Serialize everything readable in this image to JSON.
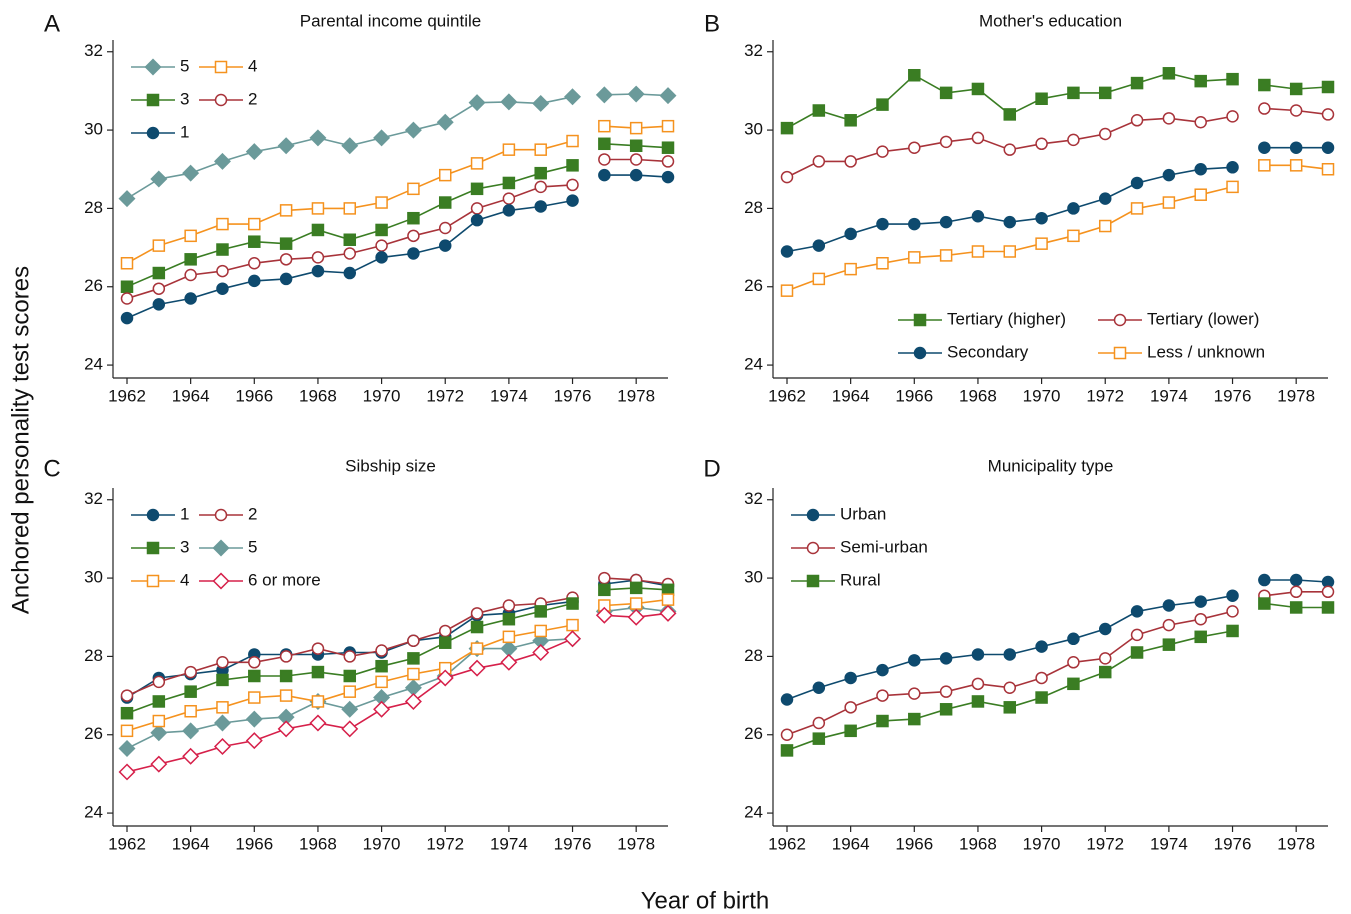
{
  "ylabel": "Anchored personality test scores",
  "xlabel": "Year of birth",
  "chart_data": [
    {
      "type": "line",
      "panel": "A",
      "title": "Parental income quintile",
      "x": [
        1962,
        1963,
        1964,
        1965,
        1966,
        1967,
        1968,
        1969,
        1970,
        1971,
        1972,
        1973,
        1974,
        1975,
        1976,
        null,
        1977,
        1978,
        1979
      ],
      "xlim": [
        1961.56,
        1979.0
      ],
      "xticks": [
        1962,
        1964,
        1966,
        1968,
        1970,
        1972,
        1974,
        1976,
        1978
      ],
      "ylim": [
        23.67,
        32.3
      ],
      "yticks": [
        24,
        26,
        28,
        30,
        32
      ],
      "legend": "upper left",
      "legend_columns": 2,
      "series": [
        {
          "name": "5",
          "color": "#6b9a9a",
          "marker": "diamond",
          "open": false,
          "values": [
            28.25,
            28.75,
            28.9,
            29.2,
            29.45,
            29.6,
            29.8,
            29.6,
            29.8,
            30.0,
            30.2,
            30.7,
            30.72,
            30.68,
            30.85,
            null,
            30.9,
            30.92,
            30.88
          ]
        },
        {
          "name": "4",
          "color": "#f5921e",
          "marker": "square",
          "open": true,
          "values": [
            26.6,
            27.05,
            27.3,
            27.6,
            27.6,
            27.95,
            28.0,
            28.0,
            28.15,
            28.5,
            28.85,
            29.15,
            29.5,
            29.5,
            29.72,
            null,
            30.1,
            30.05,
            30.1
          ]
        },
        {
          "name": "3",
          "color": "#3a7d23",
          "marker": "square",
          "open": false,
          "values": [
            26.0,
            26.35,
            26.7,
            26.95,
            27.15,
            27.1,
            27.45,
            27.2,
            27.45,
            27.75,
            28.15,
            28.5,
            28.65,
            28.9,
            29.1,
            null,
            29.65,
            29.6,
            29.55
          ]
        },
        {
          "name": "2",
          "color": "#a8333a",
          "marker": "circle",
          "open": true,
          "values": [
            25.7,
            25.95,
            26.3,
            26.4,
            26.6,
            26.7,
            26.75,
            26.85,
            27.05,
            27.3,
            27.5,
            28.0,
            28.25,
            28.55,
            28.6,
            null,
            29.25,
            29.25,
            29.2
          ]
        },
        {
          "name": "1",
          "color": "#0e4a6e",
          "marker": "circle",
          "open": false,
          "values": [
            25.2,
            25.55,
            25.7,
            25.95,
            26.15,
            26.2,
            26.4,
            26.35,
            26.75,
            26.85,
            27.05,
            27.7,
            27.95,
            28.05,
            28.2,
            null,
            28.85,
            28.85,
            28.8
          ]
        }
      ]
    },
    {
      "type": "line",
      "panel": "B",
      "title": "Mother's education",
      "x": [
        1962,
        1963,
        1964,
        1965,
        1966,
        1967,
        1968,
        1969,
        1970,
        1971,
        1972,
        1973,
        1974,
        1975,
        1976,
        null,
        1977,
        1978,
        1979
      ],
      "xlim": [
        1961.56,
        1979.0
      ],
      "xticks": [
        1962,
        1964,
        1966,
        1968,
        1970,
        1972,
        1974,
        1976,
        1978
      ],
      "ylim": [
        23.67,
        32.3
      ],
      "yticks": [
        24,
        26,
        28,
        30,
        32
      ],
      "legend": "lower right",
      "legend_columns": 2,
      "series": [
        {
          "name": "Tertiary (higher)",
          "color": "#3a7d23",
          "marker": "square",
          "open": false,
          "values": [
            30.05,
            30.5,
            30.25,
            30.65,
            31.4,
            30.95,
            31.05,
            30.4,
            30.8,
            30.95,
            30.95,
            31.2,
            31.45,
            31.25,
            31.3,
            null,
            31.15,
            31.05,
            31.1
          ]
        },
        {
          "name": "Tertiary (lower)",
          "color": "#a8333a",
          "marker": "circle",
          "open": true,
          "values": [
            28.8,
            29.2,
            29.2,
            29.45,
            29.55,
            29.7,
            29.8,
            29.5,
            29.65,
            29.75,
            29.9,
            30.25,
            30.3,
            30.2,
            30.35,
            null,
            30.55,
            30.5,
            30.4
          ]
        },
        {
          "name": "Secondary",
          "color": "#0e4a6e",
          "marker": "circle",
          "open": false,
          "values": [
            26.9,
            27.05,
            27.35,
            27.6,
            27.6,
            27.65,
            27.8,
            27.65,
            27.75,
            28.0,
            28.25,
            28.65,
            28.85,
            29.0,
            29.05,
            null,
            29.55,
            29.55,
            29.55
          ]
        },
        {
          "name": "Less / unknown",
          "color": "#f5921e",
          "marker": "square",
          "open": true,
          "values": [
            25.9,
            26.2,
            26.45,
            26.6,
            26.75,
            26.8,
            26.9,
            26.9,
            27.1,
            27.3,
            27.55,
            28.0,
            28.15,
            28.35,
            28.55,
            null,
            29.1,
            29.1,
            29.0
          ]
        }
      ]
    },
    {
      "type": "line",
      "panel": "C",
      "title": "Sibship size",
      "x": [
        1962,
        1963,
        1964,
        1965,
        1966,
        1967,
        1968,
        1969,
        1970,
        1971,
        1972,
        1973,
        1974,
        1975,
        1976,
        null,
        1977,
        1978,
        1979
      ],
      "xlim": [
        1961.56,
        1979.0
      ],
      "xticks": [
        1962,
        1964,
        1966,
        1968,
        1970,
        1972,
        1974,
        1976,
        1978
      ],
      "ylim": [
        23.67,
        32.3
      ],
      "yticks": [
        24,
        26,
        28,
        30,
        32
      ],
      "legend": "upper left",
      "legend_columns": 2,
      "series": [
        {
          "name": "1",
          "color": "#0e4a6e",
          "marker": "circle",
          "open": false,
          "values": [
            26.95,
            27.45,
            27.55,
            27.65,
            28.05,
            28.05,
            28.05,
            28.1,
            28.1,
            28.4,
            28.5,
            29.05,
            29.1,
            29.3,
            29.4,
            null,
            29.85,
            29.95,
            29.8
          ]
        },
        {
          "name": "2",
          "color": "#a8333a",
          "marker": "circle",
          "open": true,
          "values": [
            27.0,
            27.35,
            27.6,
            27.85,
            27.85,
            28.0,
            28.2,
            28.0,
            28.15,
            28.4,
            28.65,
            29.1,
            29.3,
            29.35,
            29.5,
            null,
            30.0,
            29.95,
            29.85
          ]
        },
        {
          "name": "3",
          "color": "#3a7d23",
          "marker": "square",
          "open": false,
          "values": [
            26.55,
            26.85,
            27.1,
            27.4,
            27.5,
            27.5,
            27.6,
            27.5,
            27.75,
            27.95,
            28.35,
            28.75,
            28.95,
            29.15,
            29.35,
            null,
            29.7,
            29.75,
            29.7
          ]
        },
        {
          "name": "5",
          "color": "#6b9a9a",
          "marker": "diamond",
          "open": false,
          "values": [
            25.65,
            26.05,
            26.1,
            26.3,
            26.4,
            26.45,
            26.85,
            26.65,
            26.95,
            27.2,
            27.5,
            28.2,
            28.2,
            28.4,
            28.45,
            null,
            29.15,
            29.25,
            29.15
          ]
        },
        {
          "name": "4",
          "color": "#f5921e",
          "marker": "square",
          "open": true,
          "values": [
            26.1,
            26.35,
            26.6,
            26.7,
            26.95,
            27.0,
            26.85,
            27.1,
            27.35,
            27.55,
            27.7,
            28.2,
            28.5,
            28.65,
            28.8,
            null,
            29.3,
            29.35,
            29.45
          ]
        },
        {
          "name": "6 or more",
          "color": "#d6204a",
          "marker": "diamond",
          "open": true,
          "values": [
            25.05,
            25.25,
            25.45,
            25.7,
            25.85,
            26.15,
            26.3,
            26.15,
            26.65,
            26.85,
            27.45,
            27.7,
            27.85,
            28.1,
            28.45,
            null,
            29.05,
            29.0,
            29.1
          ]
        }
      ]
    },
    {
      "type": "line",
      "panel": "D",
      "title": "Municipality type",
      "x": [
        1962,
        1963,
        1964,
        1965,
        1966,
        1967,
        1968,
        1969,
        1970,
        1971,
        1972,
        1973,
        1974,
        1975,
        1976,
        null,
        1977,
        1978,
        1979
      ],
      "xlim": [
        1961.56,
        1979.0
      ],
      "xticks": [
        1962,
        1964,
        1966,
        1968,
        1970,
        1972,
        1974,
        1976,
        1978
      ],
      "ylim": [
        23.67,
        32.3
      ],
      "yticks": [
        24,
        26,
        28,
        30,
        32
      ],
      "legend": "upper left",
      "legend_columns": 1,
      "series": [
        {
          "name": "Urban",
          "color": "#0e4a6e",
          "marker": "circle",
          "open": false,
          "values": [
            26.9,
            27.2,
            27.45,
            27.65,
            27.9,
            27.95,
            28.05,
            28.05,
            28.25,
            28.45,
            28.7,
            29.15,
            29.3,
            29.4,
            29.55,
            null,
            29.95,
            29.95,
            29.9
          ]
        },
        {
          "name": "Semi-urban",
          "color": "#a8333a",
          "marker": "circle",
          "open": true,
          "values": [
            26.0,
            26.3,
            26.7,
            27.0,
            27.05,
            27.1,
            27.3,
            27.2,
            27.45,
            27.85,
            27.95,
            28.55,
            28.8,
            28.95,
            29.15,
            null,
            29.55,
            29.65,
            29.65
          ]
        },
        {
          "name": "Rural",
          "color": "#3a7d23",
          "marker": "square",
          "open": false,
          "values": [
            25.6,
            25.9,
            26.1,
            26.35,
            26.4,
            26.65,
            26.85,
            26.7,
            26.95,
            27.3,
            27.6,
            28.1,
            28.3,
            28.5,
            28.65,
            null,
            29.35,
            29.25,
            29.25
          ]
        }
      ]
    }
  ]
}
